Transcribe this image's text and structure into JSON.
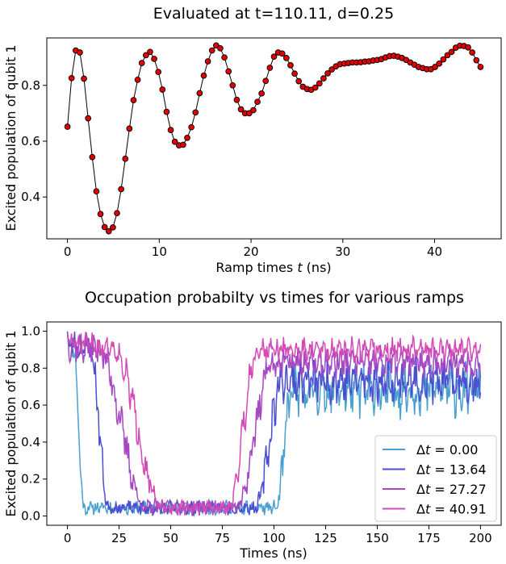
{
  "chart_data": [
    {
      "type": "line",
      "title": "Evaluated at t=110.11, d=0.25",
      "xlabel": "Ramp times t (ns)",
      "xlabel_parts": {
        "before": "Ramp times ",
        "italic": "t",
        "after": " (ns)"
      },
      "ylabel": "Excited population of qubit 1",
      "xlim": [
        -2.25,
        47.25
      ],
      "ylim": [
        0.25,
        0.97
      ],
      "xticks": [
        0,
        10,
        20,
        30,
        40
      ],
      "yticks": [
        0.4,
        0.6,
        0.8
      ],
      "marker": "o",
      "line_color": "#000000",
      "marker_color": "#e00000",
      "x": [
        0.0,
        0.45,
        0.9,
        1.35,
        1.8,
        2.25,
        2.7,
        3.15,
        3.6,
        4.05,
        4.5,
        4.95,
        5.4,
        5.85,
        6.3,
        6.75,
        7.2,
        7.65,
        8.1,
        8.55,
        9.0,
        9.45,
        9.9,
        10.35,
        10.8,
        11.25,
        11.7,
        12.15,
        12.6,
        13.05,
        13.5,
        13.95,
        14.4,
        14.85,
        15.3,
        15.75,
        16.2,
        16.65,
        17.1,
        17.55,
        18.0,
        18.45,
        18.9,
        19.35,
        19.8,
        20.25,
        20.7,
        21.15,
        21.6,
        22.05,
        22.5,
        22.95,
        23.4,
        23.85,
        24.3,
        24.75,
        25.2,
        25.65,
        26.1,
        26.55,
        27.0,
        27.45,
        27.9,
        28.35,
        28.8,
        29.25,
        29.7,
        30.15,
        30.6,
        31.05,
        31.5,
        31.95,
        32.4,
        32.85,
        33.3,
        33.75,
        34.2,
        34.65,
        35.1,
        35.55,
        36.0,
        36.45,
        36.9,
        37.35,
        37.8,
        38.25,
        38.7,
        39.15,
        39.6,
        40.05,
        40.5,
        40.95,
        41.4,
        41.85,
        42.3,
        42.75,
        43.2,
        43.65,
        44.1,
        44.55,
        45.0
      ],
      "y": [
        0.652,
        0.826,
        0.925,
        0.918,
        0.824,
        0.682,
        0.543,
        0.42,
        0.339,
        0.292,
        0.277,
        0.291,
        0.342,
        0.428,
        0.537,
        0.645,
        0.747,
        0.82,
        0.88,
        0.908,
        0.92,
        0.895,
        0.848,
        0.785,
        0.705,
        0.64,
        0.598,
        0.585,
        0.587,
        0.612,
        0.65,
        0.703,
        0.772,
        0.835,
        0.886,
        0.925,
        0.943,
        0.933,
        0.9,
        0.85,
        0.8,
        0.748,
        0.714,
        0.7,
        0.7,
        0.711,
        0.741,
        0.771,
        0.816,
        0.863,
        0.903,
        0.918,
        0.914,
        0.898,
        0.872,
        0.842,
        0.815,
        0.795,
        0.787,
        0.784,
        0.792,
        0.807,
        0.825,
        0.843,
        0.857,
        0.868,
        0.876,
        0.878,
        0.88,
        0.882,
        0.882,
        0.883,
        0.885,
        0.886,
        0.889,
        0.891,
        0.894,
        0.9,
        0.905,
        0.906,
        0.903,
        0.898,
        0.891,
        0.882,
        0.874,
        0.866,
        0.862,
        0.858,
        0.858,
        0.866,
        0.878,
        0.893,
        0.908,
        0.92,
        0.935,
        0.942,
        0.941,
        0.936,
        0.918,
        0.89,
        0.866
      ]
    },
    {
      "type": "line",
      "title": "Occupation probabilty vs times for various ramps",
      "xlabel": "Times (ns)",
      "ylabel": "Excited population of qubit 1",
      "xlim": [
        -10,
        210
      ],
      "ylim": [
        -0.05,
        1.05
      ],
      "xticks": [
        0,
        25,
        50,
        75,
        100,
        125,
        150,
        175,
        200
      ],
      "yticks": [
        0.0,
        0.2,
        0.4,
        0.6,
        0.8,
        1.0
      ],
      "legend_position": "lower right",
      "series": [
        {
          "name": "Δt =  0.00",
          "label_value": "0.00",
          "color": "#4aa0cf",
          "model": {
            "drop_start": 3,
            "drop_end": 8,
            "rise_start": 101,
            "rise_end": 109,
            "high_level": 0.9,
            "final_level": 0.68,
            "noise_high": 0.05,
            "noise_low": 0.035,
            "noise_final": 0.13,
            "seed": 11
          }
        },
        {
          "name": "Δt =  13.64",
          "label_value": "13.64",
          "color": "#4a4ed0",
          "model": {
            "drop_start": 11,
            "drop_end": 20,
            "rise_start": 91,
            "rise_end": 104,
            "high_level": 0.9,
            "final_level": 0.73,
            "noise_high": 0.07,
            "noise_low": 0.035,
            "noise_final": 0.11,
            "seed": 23
          }
        },
        {
          "name": "Δt =  27.27",
          "label_value": "27.27",
          "color": "#a648c4",
          "model": {
            "drop_start": 15,
            "drop_end": 38,
            "rise_start": 82,
            "rise_end": 99,
            "high_level": 0.9,
            "final_level": 0.83,
            "noise_high": 0.08,
            "noise_low": 0.04,
            "noise_final": 0.08,
            "seed": 37
          }
        },
        {
          "name": "Δt =  40.91",
          "label_value": "40.91",
          "color": "#d44ab6",
          "model": {
            "drop_start": 22,
            "drop_end": 46,
            "rise_start": 78,
            "rise_end": 92,
            "high_level": 0.91,
            "final_level": 0.9,
            "noise_high": 0.06,
            "noise_low": 0.035,
            "noise_final": 0.06,
            "seed": 51
          }
        }
      ]
    }
  ]
}
